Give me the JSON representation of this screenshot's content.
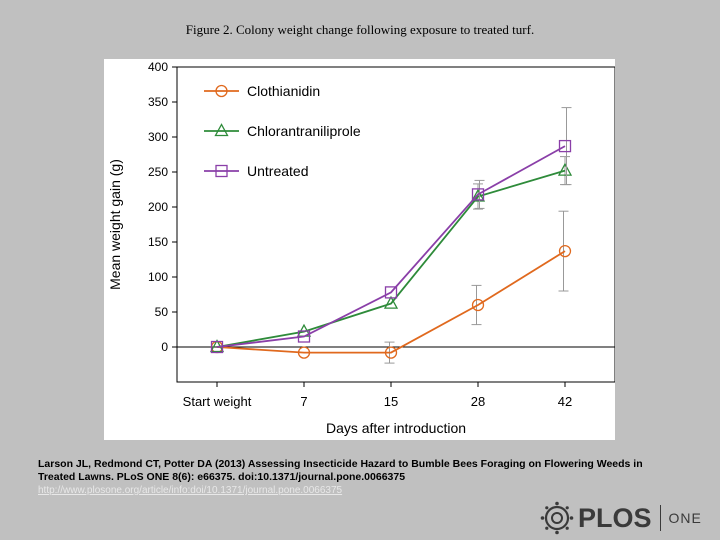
{
  "figure_title": "Figure 2. Colony weight change following exposure to treated turf.",
  "citation": {
    "line1": "Larson JL, Redmond CT, Potter DA (2013) Assessing Insecticide Hazard to Bumble Bees Foraging on Flowering Weeds in",
    "line2": "Treated Lawns. PLoS ONE 8(6): e66375. doi:10.1371/journal.pone.0066375",
    "url": "http://www.plosone.org/article/info:doi/10.1371/journal.pone.0066375"
  },
  "logo": {
    "word": "PLOS",
    "suffix": "ONE"
  },
  "chart_data": {
    "type": "line",
    "title": "",
    "xlabel": "Days after introduction",
    "ylabel": "Mean weight gain (g)",
    "categories": [
      "Start weight",
      "7",
      "15",
      "28",
      "42"
    ],
    "ylim": [
      -50,
      400
    ],
    "yticks": [
      0,
      50,
      100,
      150,
      200,
      250,
      300,
      350,
      400
    ],
    "zero_line": true,
    "legend_position": "top-left",
    "series": [
      {
        "name": "Clothianidin",
        "color": "#e0691e",
        "marker": "circle",
        "values": [
          0,
          -8,
          -8,
          60,
          137
        ],
        "error": [
          0,
          0,
          15,
          28,
          57
        ]
      },
      {
        "name": "Chlorantraniliprole",
        "color": "#2e8b3a",
        "marker": "triangle",
        "values": [
          0,
          22,
          62,
          215,
          252
        ],
        "error": [
          0,
          0,
          0,
          18,
          20
        ]
      },
      {
        "name": "Untreated",
        "color": "#8a3fa8",
        "marker": "square",
        "values": [
          0,
          15,
          78,
          218,
          287
        ],
        "error": [
          0,
          0,
          0,
          20,
          55
        ]
      }
    ]
  }
}
